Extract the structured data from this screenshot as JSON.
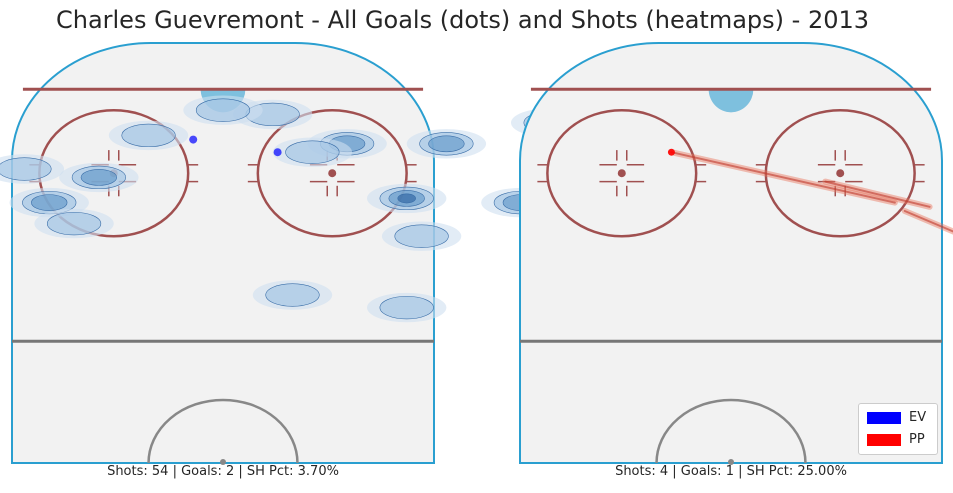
{
  "title": "Charles Guevremont - All Goals (dots) and Shots (heatmaps) - 2013",
  "colors": {
    "EV": "#0000ff",
    "PP": "#ff0000",
    "ice": "#f2f2f2",
    "boards": "#2a9fd0",
    "red_line": "#a05050",
    "blue_line": "#777777",
    "crease": "#7ec0de"
  },
  "legend": [
    {
      "label": "EV",
      "color": "#0000ff"
    },
    {
      "label": "PP",
      "color": "#ff0000"
    }
  ],
  "panels": {
    "left": {
      "caption": "Shots: 54 | Goals: 2 | SH Pct: 3.70%",
      "strength": "EV"
    },
    "right": {
      "caption": "Shots: 4 | Goals: 1 | SH Pct: 25.00%",
      "strength": "PP"
    }
  },
  "chart_data": [
    {
      "type": "heatmap",
      "strength": "EV",
      "title": "Charles Guevremont - All Goals (dots) and Shots (heatmaps) - 2013",
      "caption": "Shots: 54 | Goals: 2 | SH Pct: 3.70%",
      "shots": 54,
      "goals": 2,
      "sh_pct": 3.7,
      "shot_density": [
        {
          "x": 37,
          "y": 63,
          "level": 3
        },
        {
          "x": 40,
          "y": 54,
          "level": 1
        },
        {
          "x": 60,
          "y": 62,
          "level": 2
        },
        {
          "x": 66,
          "y": 81,
          "level": 2
        },
        {
          "x": 73,
          "y": 88,
          "level": 3
        },
        {
          "x": 80,
          "y": 85,
          "level": 2
        },
        {
          "x": 45,
          "y": 76,
          "level": 2
        },
        {
          "x": 25,
          "y": 76,
          "level": 2
        },
        {
          "x": 18,
          "y": 74,
          "level": 1
        },
        {
          "x": 10,
          "y": 83,
          "level": 1
        },
        {
          "x": -35,
          "y": 62,
          "level": 2
        },
        {
          "x": -40,
          "y": 70,
          "level": 1
        },
        {
          "x": -25,
          "y": 68,
          "level": 2
        },
        {
          "x": -15,
          "y": 78,
          "level": 1
        },
        {
          "x": 0,
          "y": 84,
          "level": 1
        },
        {
          "x": 14,
          "y": 40,
          "level": 1
        },
        {
          "x": -30,
          "y": 57,
          "level": 1
        },
        {
          "x": 37,
          "y": 37,
          "level": 1
        }
      ],
      "goals_xy": [
        {
          "x": 11,
          "y": 74,
          "color": "#0000ff"
        },
        {
          "x": -6,
          "y": 77,
          "color": "#0000ff"
        }
      ]
    },
    {
      "type": "heatmap",
      "strength": "PP",
      "caption": "Shots: 4 | Goals: 1 | SH Pct: 25.00%",
      "shots": 4,
      "goals": 1,
      "sh_pct": 25.0,
      "shot_streaks": [
        {
          "from": {
            "x": -12,
            "y": 74
          },
          "to": {
            "x": 33,
            "y": 62
          }
        },
        {
          "from": {
            "x": 19,
            "y": 67
          },
          "to": {
            "x": 40,
            "y": 61
          }
        },
        {
          "from": {
            "x": 35,
            "y": 60
          },
          "to": {
            "x": 45,
            "y": 55
          }
        }
      ],
      "goals_xy": [
        {
          "x": -12,
          "y": 74,
          "color": "#ff0000"
        }
      ]
    }
  ]
}
